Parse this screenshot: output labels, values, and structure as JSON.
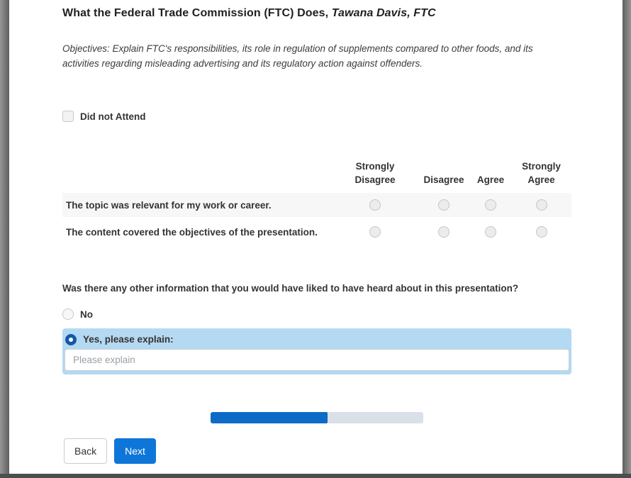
{
  "page": {
    "title_main": "What the Federal Trade Commission (FTC) Does,",
    "title_presenter": " Tawana Davis, FTC",
    "objectives": "Objectives: Explain FTC's responsibilities, its role in regulation of supplements compared to other foods, and its activities regarding misleading advertising and its regulatory action against offenders."
  },
  "attendance": {
    "label": "Did not Attend",
    "checked": false
  },
  "matrix": {
    "columns": [
      "Strongly Disagree",
      "Disagree",
      "Agree",
      "Strongly Agree"
    ],
    "rows": [
      {
        "statement": "The topic was relevant for my work or career.",
        "selected": null
      },
      {
        "statement": "The content covered the objectives of the presentation.",
        "selected": null
      }
    ]
  },
  "open_question": {
    "label": "Was there any other information that you would have liked to have heard about in this presentation?",
    "options": [
      {
        "label": "No",
        "selected": false
      },
      {
        "label": "Yes, please explain:",
        "selected": true
      }
    ],
    "input": {
      "placeholder": "Please explain",
      "value": ""
    }
  },
  "progress": {
    "percent": 55
  },
  "buttons": {
    "back": "Back",
    "next": "Next"
  },
  "colors": {
    "accent_blue": "#0e76d8",
    "progress_fill": "#0b6bc7",
    "progress_track": "#d9e0e7",
    "selected_option_bg": "#b4d9f2",
    "selected_radio": "#1458a7",
    "row_stripe": "#f7f7f7"
  }
}
